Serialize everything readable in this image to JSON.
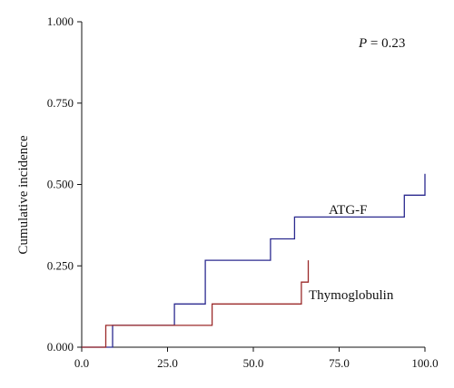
{
  "chart_data": {
    "type": "line",
    "step": true,
    "ylabel": "Cumulative incidence",
    "xlabel": "",
    "xlim": [
      0,
      100
    ],
    "ylim": [
      0,
      1
    ],
    "xticks": [
      "0.0",
      "25.0",
      "50.0",
      "75.0",
      "100.0"
    ],
    "yticks": [
      "0.000",
      "0.250",
      "0.500",
      "0.750",
      "1.000"
    ],
    "annotation": {
      "italic": "P",
      "rest": " = 0.23"
    },
    "grid": false,
    "series": [
      {
        "name": "ATG-F",
        "color": "#2b2a8f",
        "x": [
          0,
          9,
          9,
          27,
          27,
          36,
          36,
          55,
          55,
          62,
          62,
          94,
          94,
          100,
          100
        ],
        "y": [
          0,
          0,
          0.067,
          0.067,
          0.133,
          0.133,
          0.267,
          0.267,
          0.333,
          0.333,
          0.4,
          0.4,
          0.467,
          0.467,
          0.533
        ]
      },
      {
        "name": "Thymoglobulin",
        "color": "#9b2a2a",
        "x": [
          0,
          7,
          7,
          38,
          38,
          64,
          64,
          66,
          66
        ],
        "y": [
          0,
          0,
          0.067,
          0.067,
          0.133,
          0.133,
          0.2,
          0.2,
          0.267
        ]
      }
    ]
  }
}
